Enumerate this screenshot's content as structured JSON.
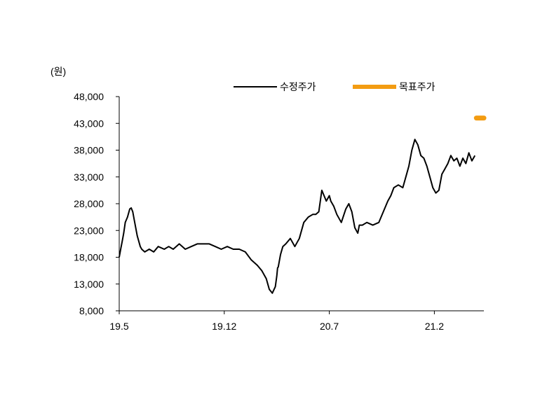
{
  "chart_data": {
    "type": "line",
    "unit_label": "(원)",
    "ylim": [
      8000,
      48000
    ],
    "y_ticks": [
      "48,000",
      "43,000",
      "38,000",
      "33,000",
      "28,000",
      "23,000",
      "18,000",
      "13,000",
      "8,000"
    ],
    "y_tick_values": [
      48000,
      43000,
      38000,
      33000,
      28000,
      23000,
      18000,
      13000,
      8000
    ],
    "x_ticks": [
      "19.5",
      "19.12",
      "20.7",
      "21.2"
    ],
    "x_tick_positions": [
      0,
      7,
      14,
      21
    ],
    "xlim": [
      0,
      24.3
    ],
    "legend_position": "top-right",
    "colors": {
      "series_price": "#000000",
      "series_target": "#F39C12"
    },
    "series": [
      {
        "name": "수정주가",
        "x": [
          0,
          0.1,
          0.2,
          0.3,
          0.4,
          0.55,
          0.7,
          0.8,
          0.9,
          1.0,
          1.2,
          1.4,
          1.5,
          1.7,
          2.0,
          2.3,
          2.6,
          3.0,
          3.3,
          3.6,
          4.0,
          4.4,
          4.8,
          5.2,
          5.6,
          6.0,
          6.4,
          6.8,
          7.2,
          7.6,
          8.0,
          8.4,
          8.8,
          9.2,
          9.5,
          9.8,
          10.0,
          10.2,
          10.4,
          10.5,
          10.55,
          10.6,
          10.75,
          10.9,
          11.1,
          11.4,
          11.7,
          12.0,
          12.3,
          12.6,
          12.9,
          13.1,
          13.3,
          13.5,
          13.8,
          14.0,
          14.1,
          14.3,
          14.5,
          14.8,
          15.1,
          15.3,
          15.5,
          15.7,
          15.9,
          16.0,
          16.2,
          16.5,
          16.9,
          17.3,
          17.6,
          17.9,
          18.1,
          18.3,
          18.6,
          18.9,
          19.1,
          19.3,
          19.5,
          19.7,
          19.9,
          20.1,
          20.3,
          20.5,
          20.7,
          20.9,
          21.1,
          21.3,
          21.5,
          21.7,
          21.9,
          22.1,
          22.3,
          22.5,
          22.7,
          22.9,
          23.1,
          23.3,
          23.5,
          23.7
        ],
        "y": [
          18000,
          19500,
          21000,
          22500,
          24500,
          25500,
          27000,
          27200,
          26500,
          25000,
          22000,
          20000,
          19500,
          19000,
          19500,
          19000,
          20000,
          19500,
          20000,
          19500,
          20500,
          19500,
          20000,
          20500,
          20500,
          20500,
          20000,
          19500,
          20000,
          19500,
          19500,
          19000,
          17500,
          16500,
          15500,
          14000,
          12000,
          11300,
          12500,
          14500,
          16000,
          16200,
          18500,
          20000,
          20500,
          21500,
          20000,
          21500,
          24500,
          25500,
          26000,
          26000,
          26500,
          30500,
          28500,
          29500,
          28500,
          27500,
          26000,
          24500,
          27000,
          28000,
          26500,
          23500,
          22500,
          24000,
          24000,
          24500,
          24000,
          24500,
          26500,
          28500,
          29500,
          31000,
          31500,
          31000,
          33000,
          35000,
          38000,
          40000,
          39000,
          37000,
          36500,
          35000,
          33000,
          31000,
          30000,
          30500,
          33500,
          34500,
          35500,
          37000,
          36000,
          36500,
          35000,
          36500,
          35500,
          37500,
          36000,
          37000
        ]
      },
      {
        "name": "목표주가",
        "x": [
          23.8,
          24.3
        ],
        "y": [
          44000,
          44000
        ]
      }
    ]
  }
}
